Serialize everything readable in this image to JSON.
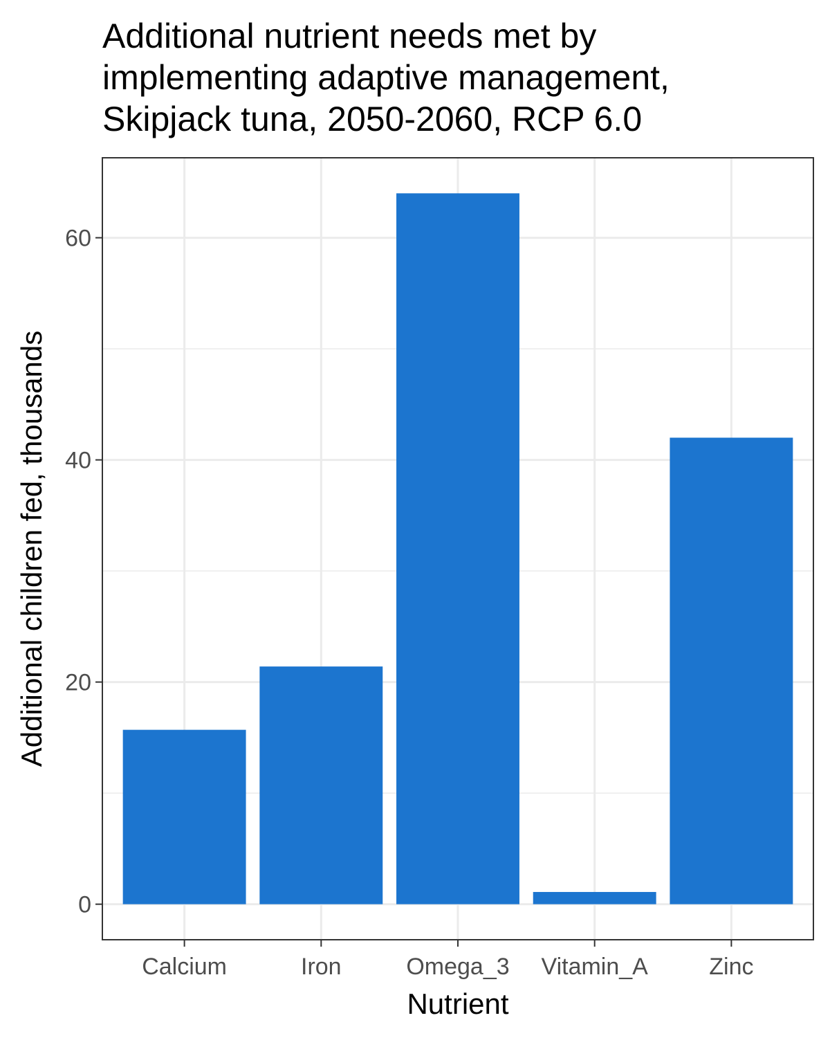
{
  "colors": {
    "bar": "#1c75cf",
    "grid": "#ebebeb",
    "panel_border": "#333333",
    "tick_text": "#4d4d4d"
  },
  "chart_data": {
    "type": "bar",
    "title_lines": [
      "Additional nutrient needs met by",
      "implementing adaptive management,",
      "Skipjack tuna, 2050-2060, RCP 6.0"
    ],
    "xlabel": "Nutrient",
    "ylabel": "Additional children fed, thousands",
    "categories": [
      "Calcium",
      "Iron",
      "Omega_3",
      "Vitamin_A",
      "Zinc"
    ],
    "values": [
      15.7,
      21.4,
      64.0,
      1.1,
      42.0
    ],
    "ylim": [
      -3.2,
      67.2
    ],
    "y_ticks": [
      0,
      20,
      40,
      60
    ],
    "y_tick_labels": [
      "0",
      "20",
      "40",
      "60"
    ],
    "grid": true,
    "legend": "none"
  }
}
